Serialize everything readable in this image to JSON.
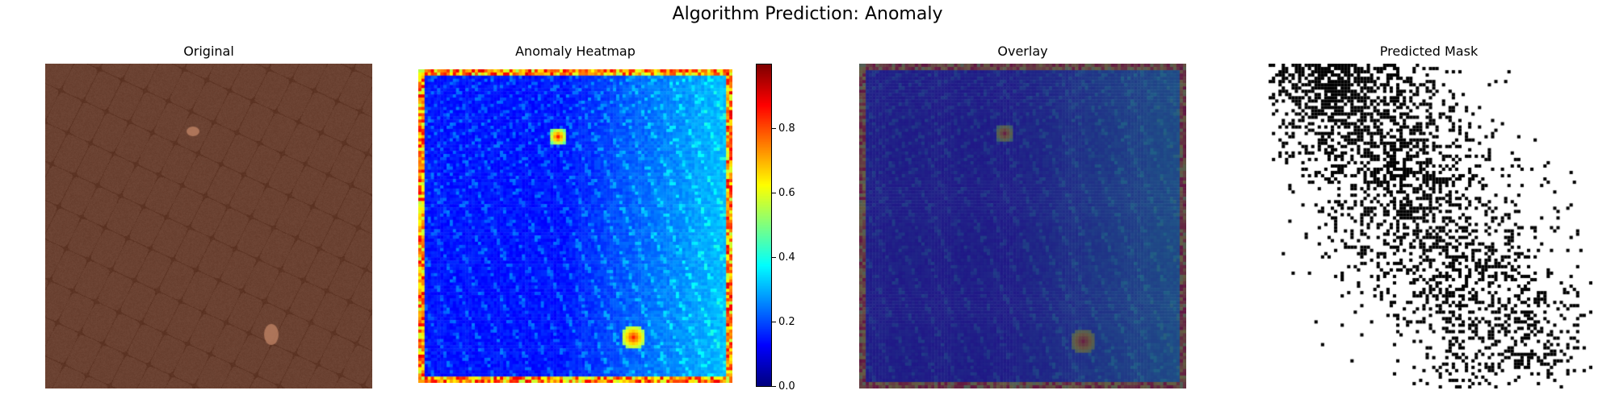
{
  "figure": {
    "suptitle": "Algorithm Prediction: Anomaly",
    "panels": {
      "original": {
        "title": "Original"
      },
      "heatmap": {
        "title": "Anomaly Heatmap"
      },
      "overlay": {
        "title": "Overlay"
      },
      "mask": {
        "title": "Predicted Mask"
      }
    },
    "colorbar": {
      "colormap": "jet",
      "range": [
        0.0,
        1.0
      ],
      "ticks": [
        "0.0",
        "0.2",
        "0.4",
        "0.6",
        "0.8"
      ]
    },
    "colors": {
      "leather": "#6b4232",
      "overlay_tint": "#3b2f7a",
      "mask_on": "#000000",
      "mask_off": "#ffffff"
    }
  }
}
